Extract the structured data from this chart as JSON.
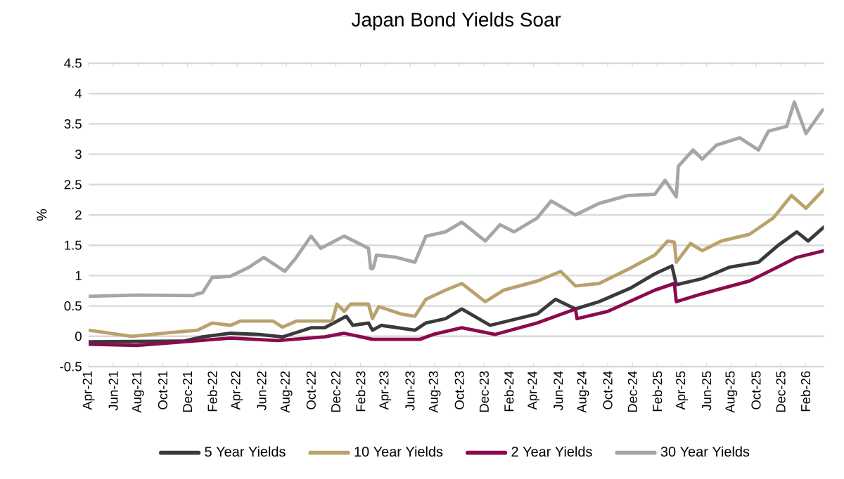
{
  "chart_data": {
    "type": "line",
    "title": "Japan Bond Yields Soar",
    "ylabel": "%",
    "xlim": [
      "2021-04-01",
      "2026-03-16"
    ],
    "xticks": [
      {
        "value": "2021-04-01",
        "label": "Apr-21"
      },
      {
        "value": "2021-06-01",
        "label": "Jun-21"
      },
      {
        "value": "2021-08-01",
        "label": "Aug-21"
      },
      {
        "value": "2021-10-01",
        "label": "Oct-21"
      },
      {
        "value": "2021-12-01",
        "label": "Dec-21"
      },
      {
        "value": "2022-02-01",
        "label": "Feb-22"
      },
      {
        "value": "2022-04-01",
        "label": "Apr-22"
      },
      {
        "value": "2022-06-01",
        "label": "Jun-22"
      },
      {
        "value": "2022-08-01",
        "label": "Aug-22"
      },
      {
        "value": "2022-10-01",
        "label": "Oct-22"
      },
      {
        "value": "2022-12-01",
        "label": "Dec-22"
      },
      {
        "value": "2023-02-01",
        "label": "Feb-23"
      },
      {
        "value": "2023-04-01",
        "label": "Apr-23"
      },
      {
        "value": "2023-06-01",
        "label": "Jun-23"
      },
      {
        "value": "2023-08-01",
        "label": "Aug-23"
      },
      {
        "value": "2023-10-01",
        "label": "Oct-23"
      },
      {
        "value": "2023-12-01",
        "label": "Dec-23"
      },
      {
        "value": "2024-02-01",
        "label": "Feb-24"
      },
      {
        "value": "2024-04-01",
        "label": "Apr-24"
      },
      {
        "value": "2024-06-01",
        "label": "Jun-24"
      },
      {
        "value": "2024-08-01",
        "label": "Aug-24"
      },
      {
        "value": "2024-10-01",
        "label": "Oct-24"
      },
      {
        "value": "2024-12-01",
        "label": "Dec-24"
      },
      {
        "value": "2025-02-01",
        "label": "Feb-25"
      },
      {
        "value": "2025-04-01",
        "label": "Apr-25"
      },
      {
        "value": "2025-06-01",
        "label": "Jun-25"
      },
      {
        "value": "2025-08-01",
        "label": "Aug-25"
      },
      {
        "value": "2025-10-01",
        "label": "Oct-25"
      },
      {
        "value": "2025-12-01",
        "label": "Dec-25"
      },
      {
        "value": "2026-02-01",
        "label": "Feb-26"
      }
    ],
    "ylim": [
      -0.5,
      4.5
    ],
    "yticks": [
      -0.5,
      0,
      0.5,
      1,
      1.5,
      2,
      2.5,
      3,
      3.5,
      4,
      4.5
    ],
    "grid": "y",
    "legend": "bottom",
    "marker": "none",
    "line_style": "solid",
    "series": [
      {
        "name": "5 Year Yields",
        "color": "#3a3a3a",
        "x": [
          "2021-04-01",
          "2021-11-22",
          "2022-01-08",
          "2022-03-16",
          "2022-05-25",
          "2022-07-22",
          "2022-10-01",
          "2022-11-04",
          "2022-12-27",
          "2023-01-13",
          "2023-02-19",
          "2023-02-28",
          "2023-03-22",
          "2023-06-13",
          "2023-07-10",
          "2023-08-28",
          "2023-10-07",
          "2023-12-16",
          "2024-04-10",
          "2024-05-25",
          "2024-07-13",
          "2024-09-10",
          "2024-11-28",
          "2025-01-26",
          "2025-03-07",
          "2025-03-18",
          "2025-05-21",
          "2025-07-28",
          "2025-10-07",
          "2025-11-23",
          "2026-01-10",
          "2026-02-07",
          "2026-03-16"
        ],
        "values": [
          -0.09,
          -0.08,
          -0.01,
          0.05,
          0.03,
          -0.01,
          0.14,
          0.14,
          0.33,
          0.18,
          0.22,
          0.1,
          0.18,
          0.1,
          0.22,
          0.29,
          0.45,
          0.18,
          0.37,
          0.61,
          0.45,
          0.57,
          0.8,
          1.03,
          1.16,
          0.85,
          0.95,
          1.14,
          1.22,
          1.49,
          1.72,
          1.57,
          1.8
        ]
      },
      {
        "name": "10 Year Yields",
        "color": "#b9a26b",
        "x": [
          "2021-04-01",
          "2021-07-16",
          "2021-10-18",
          "2021-12-26",
          "2022-02-01",
          "2022-03-16",
          "2022-04-09",
          "2022-06-29",
          "2022-07-22",
          "2022-08-26",
          "2022-11-22",
          "2022-12-04",
          "2022-12-22",
          "2023-01-07",
          "2023-02-19",
          "2023-02-28",
          "2023-03-16",
          "2023-05-08",
          "2023-06-13",
          "2023-07-10",
          "2023-08-28",
          "2023-10-07",
          "2023-12-04",
          "2024-01-19",
          "2024-04-10",
          "2024-06-07",
          "2024-07-13",
          "2024-09-10",
          "2024-11-19",
          "2025-01-26",
          "2025-02-25",
          "2025-03-13",
          "2025-03-18",
          "2025-04-22",
          "2025-05-21",
          "2025-07-07",
          "2025-09-15",
          "2025-11-13",
          "2025-12-28",
          "2026-02-02",
          "2026-03-16"
        ],
        "values": [
          0.1,
          0.0,
          0.06,
          0.1,
          0.22,
          0.18,
          0.25,
          0.25,
          0.15,
          0.25,
          0.25,
          0.53,
          0.41,
          0.53,
          0.53,
          0.29,
          0.49,
          0.37,
          0.33,
          0.61,
          0.76,
          0.87,
          0.57,
          0.76,
          0.91,
          1.07,
          0.83,
          0.87,
          1.1,
          1.34,
          1.57,
          1.55,
          1.22,
          1.53,
          1.41,
          1.57,
          1.68,
          1.95,
          2.32,
          2.11,
          2.42
        ]
      },
      {
        "name": "2 Year Yields",
        "color": "#8b0a50",
        "x": [
          "2021-04-01",
          "2021-07-28",
          "2021-11-22",
          "2022-03-16",
          "2022-07-10",
          "2022-11-04",
          "2022-12-22",
          "2023-02-28",
          "2023-06-25",
          "2023-07-28",
          "2023-10-07",
          "2023-12-28",
          "2024-04-10",
          "2024-07-13",
          "2024-07-17",
          "2024-10-01",
          "2025-01-26",
          "2025-03-13",
          "2025-03-18",
          "2025-05-21",
          "2025-09-15",
          "2025-11-23",
          "2026-01-10",
          "2026-03-16"
        ],
        "values": [
          -0.13,
          -0.15,
          -0.09,
          -0.03,
          -0.07,
          -0.01,
          0.05,
          -0.05,
          -0.05,
          0.03,
          0.14,
          0.03,
          0.22,
          0.45,
          0.29,
          0.41,
          0.76,
          0.87,
          0.57,
          0.7,
          0.91,
          1.14,
          1.3,
          1.41
        ]
      },
      {
        "name": "30 Year Yields",
        "color": "#a6a6a6",
        "x": [
          "2021-04-01",
          "2021-07-28",
          "2021-12-15",
          "2021-12-26",
          "2022-01-08",
          "2022-02-01",
          "2022-03-16",
          "2022-05-01",
          "2022-06-06",
          "2022-07-28",
          "2022-08-26",
          "2022-10-01",
          "2022-10-25",
          "2022-12-22",
          "2023-02-19",
          "2023-02-24",
          "2023-02-28",
          "2023-03-03",
          "2023-03-10",
          "2023-04-28",
          "2023-06-13",
          "2023-07-10",
          "2023-08-28",
          "2023-10-07",
          "2023-12-04",
          "2024-01-10",
          "2024-02-13",
          "2024-04-10",
          "2024-05-14",
          "2024-07-13",
          "2024-09-10",
          "2024-11-19",
          "2025-01-26",
          "2025-02-19",
          "2025-03-18",
          "2025-03-23",
          "2025-04-28",
          "2025-05-21",
          "2025-06-25",
          "2025-08-22",
          "2025-10-07",
          "2025-11-01",
          "2025-12-16",
          "2026-01-04",
          "2026-02-02",
          "2026-03-13"
        ],
        "values": [
          0.66,
          0.68,
          0.67,
          0.7,
          0.72,
          0.97,
          0.99,
          1.14,
          1.3,
          1.07,
          1.3,
          1.65,
          1.45,
          1.65,
          1.45,
          1.12,
          1.11,
          1.15,
          1.34,
          1.3,
          1.22,
          1.65,
          1.72,
          1.88,
          1.57,
          1.84,
          1.72,
          1.95,
          2.23,
          2.0,
          2.19,
          2.32,
          2.34,
          2.57,
          2.3,
          2.8,
          3.07,
          2.92,
          3.15,
          3.27,
          3.07,
          3.38,
          3.46,
          3.86,
          3.34,
          3.73
        ]
      }
    ]
  }
}
